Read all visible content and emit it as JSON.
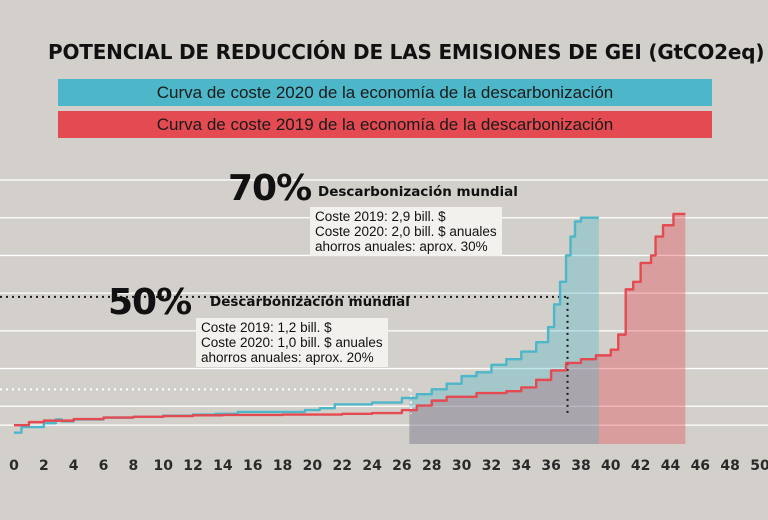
{
  "header": {
    "title": "POTENCIAL DE REDUCCIÓN DE LAS EMISIONES DE GEI (GtCO2eq)"
  },
  "legend": {
    "series_2020": "Curva de coste 2020 de la economía de la descarbonización",
    "series_2019": "Curva de coste 2019 de la economía de la descarbonización"
  },
  "colors": {
    "background": "#d3d0cb",
    "series_2020": "#4db6c8",
    "series_2019": "#e34a52",
    "grid": "#ffffff"
  },
  "annotations": {
    "a70": {
      "percent": "70%",
      "heading": "Descarbonización mundial",
      "line1": "Coste 2019: 2,9 bill. $",
      "line2": "Coste 2020: 2,0 bill. $ anuales",
      "line3": "ahorros anuales: aprox. 30%"
    },
    "a50": {
      "percent": "50%",
      "heading": "Descarbonización mundial",
      "line1": "Coste 2019: 1,2 bill. $",
      "line2": "Coste 2020: 1,0 bill. $ anuales",
      "line3": "ahorros anuales: aprox. 20%"
    }
  },
  "chart_data": {
    "type": "line",
    "title": "POTENCIAL DE REDUCCIÓN DE LAS EMISIONES DE GEI (GtCO2eq)",
    "xlabel": "",
    "ylabel": "",
    "xlim": [
      0,
      50
    ],
    "ylim": [
      -0.5,
      6.5
    ],
    "x_ticks": [
      0,
      2,
      4,
      6,
      8,
      10,
      12,
      14,
      16,
      18,
      20,
      22,
      24,
      26,
      28,
      30,
      32,
      34,
      36,
      38,
      40,
      42,
      44,
      46,
      48,
      50
    ],
    "x_tick_labels": [
      "0",
      "2",
      "4",
      "6",
      "8",
      "10",
      "12",
      "14",
      "16",
      "18",
      "20",
      "22",
      "24",
      "26",
      "28",
      "30",
      "32",
      "34",
      "36",
      "38",
      "40",
      "42",
      "44",
      "46",
      "48",
      "50"
    ],
    "y_gridlines": [
      0,
      0.5,
      1.5,
      2.5,
      3.5,
      4.5,
      5.5,
      6.5
    ],
    "grid": true,
    "series": [
      {
        "name": "Curva de coste 2020 de la economía de la descarbonización",
        "color": "#4db6c8",
        "points": [
          [
            0,
            -0.2
          ],
          [
            0.5,
            -0.05
          ],
          [
            2,
            0.05
          ],
          [
            2.8,
            0.15
          ],
          [
            3.2,
            0.1
          ],
          [
            4,
            0.15
          ],
          [
            6,
            0.2
          ],
          [
            8,
            0.22
          ],
          [
            10,
            0.25
          ],
          [
            12,
            0.28
          ],
          [
            13.5,
            0.3
          ],
          [
            15,
            0.35
          ],
          [
            18,
            0.35
          ],
          [
            19.5,
            0.4
          ],
          [
            20.5,
            0.45
          ],
          [
            21.5,
            0.55
          ],
          [
            24,
            0.6
          ],
          [
            26,
            0.72
          ],
          [
            27,
            0.82
          ],
          [
            28,
            0.95
          ],
          [
            29,
            1.1
          ],
          [
            30,
            1.3
          ],
          [
            31,
            1.4
          ],
          [
            32,
            1.6
          ],
          [
            33,
            1.75
          ],
          [
            34,
            1.95
          ],
          [
            35,
            2.2
          ],
          [
            35.8,
            2.6
          ],
          [
            36.2,
            3.2
          ],
          [
            36.6,
            3.8
          ],
          [
            37,
            4.5
          ],
          [
            37.3,
            5.0
          ],
          [
            37.6,
            5.4
          ],
          [
            38,
            5.5
          ],
          [
            39.2,
            5.5
          ]
        ]
      },
      {
        "name": "Curva de coste 2019 de la economía de la descarbonización",
        "color": "#e34a52",
        "points": [
          [
            0,
            0
          ],
          [
            1,
            0.08
          ],
          [
            2,
            0.12
          ],
          [
            4,
            0.16
          ],
          [
            6,
            0.2
          ],
          [
            8,
            0.22
          ],
          [
            10,
            0.24
          ],
          [
            12,
            0.26
          ],
          [
            14,
            0.27
          ],
          [
            18,
            0.28
          ],
          [
            22,
            0.3
          ],
          [
            24,
            0.32
          ],
          [
            26,
            0.4
          ],
          [
            27,
            0.52
          ],
          [
            28,
            0.65
          ],
          [
            29,
            0.75
          ],
          [
            31,
            0.85
          ],
          [
            33,
            0.9
          ],
          [
            34,
            1.0
          ],
          [
            35,
            1.2
          ],
          [
            36,
            1.45
          ],
          [
            37,
            1.65
          ],
          [
            38,
            1.75
          ],
          [
            39,
            1.85
          ],
          [
            40,
            2.0
          ],
          [
            40.5,
            2.4
          ],
          [
            41,
            3.6
          ],
          [
            41.5,
            3.8
          ],
          [
            42,
            4.3
          ],
          [
            42.7,
            4.5
          ],
          [
            43,
            5.0
          ],
          [
            43.5,
            5.3
          ],
          [
            44.2,
            5.6
          ],
          [
            45,
            5.6
          ]
        ]
      }
    ],
    "shaded_areas": [
      {
        "series": "2020",
        "x_range": [
          26.5,
          39.2
        ]
      },
      {
        "series": "2019",
        "x_range": [
          26.5,
          45
        ]
      }
    ],
    "reference_lines": [
      {
        "label": "70%",
        "x": 37.1,
        "y": 3.4
      },
      {
        "label": "50%",
        "x": 26.6,
        "y": 0.95
      }
    ]
  }
}
